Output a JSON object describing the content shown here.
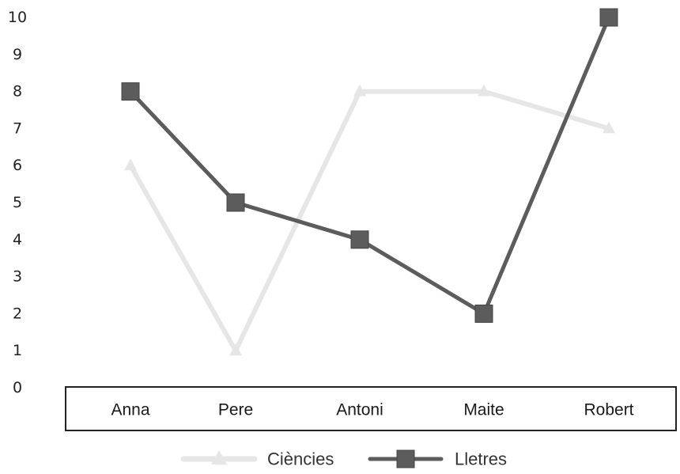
{
  "chart_data": {
    "type": "line",
    "categories": [
      "Anna",
      "Pere",
      "Antoni",
      "Maite",
      "Robert"
    ],
    "y_ticks": [
      "0",
      "1",
      "2",
      "3",
      "4",
      "5",
      "6",
      "7",
      "8",
      "9",
      "10"
    ],
    "ylim": [
      0,
      10
    ],
    "grid": false,
    "legend_position": "bottom",
    "series": [
      {
        "name": "Ciències",
        "values": [
          6,
          1,
          8,
          8,
          7
        ],
        "color": "#e6e6e6",
        "marker": "triangle"
      },
      {
        "name": "Lletres",
        "values": [
          8,
          5,
          4,
          2,
          10
        ],
        "color": "#5c5c5c",
        "marker": "square"
      }
    ]
  }
}
